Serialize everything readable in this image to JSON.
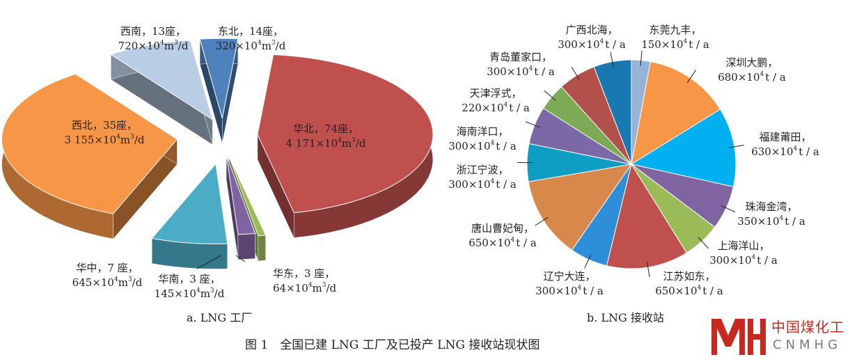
{
  "figure_title": "图 1　全国已建 LNG 工厂及已投产 LNG 接收站现状图",
  "logo": {
    "cn": "中国煤化工",
    "en": "CNMHG",
    "color": "#c8291f"
  },
  "chart_data": [
    {
      "type": "pie",
      "subtitle": "a. LNG 工厂",
      "style": "3d-exploded",
      "series": [
        {
          "region": "华北",
          "count": 74,
          "capacity": 4171,
          "line1": "华北，74座，",
          "line2a": "4 171×10",
          "line2b": "m",
          "line2c": "/d",
          "color": "#c0504d"
        },
        {
          "region": "华东",
          "count": 3,
          "capacity": 64,
          "line1": "华东，3 座，",
          "line2a": "64×10",
          "line2b": "m",
          "line2c": "/d",
          "color": "#9bbb59"
        },
        {
          "region": "华南",
          "count": 3,
          "capacity": 145,
          "line1": "华南，3 座，",
          "line2a": "145×10",
          "line2b": "m",
          "line2c": "/d",
          "color": "#8064a2"
        },
        {
          "region": "华中",
          "count": 7,
          "capacity": 645,
          "line1": "华中，7 座，",
          "line2a": "645×10",
          "line2b": "m",
          "line2c": "/d",
          "color": "#4bacc6"
        },
        {
          "region": "西北",
          "count": 35,
          "capacity": 3155,
          "line1": "西北，35座，",
          "line2a": "3 155×10",
          "line2b": "m",
          "line2c": "/d",
          "color": "#f79646"
        },
        {
          "region": "西南",
          "count": 13,
          "capacity": 720,
          "line1": "西南，13座，",
          "line2a": "720×10",
          "line2b": "m",
          "line2c": "/d",
          "color": "#b9cde5"
        },
        {
          "region": "东北",
          "count": 14,
          "capacity": 320,
          "line1": "东北，14座，",
          "line2a": "320×10",
          "line2b": "m",
          "line2c": "/d",
          "color": "#4f81bd"
        }
      ],
      "units": "10^4 m^3/d",
      "sup": "4",
      "sup3": "3"
    },
    {
      "type": "pie",
      "subtitle": "b. LNG 接收站",
      "series": [
        {
          "name": "东莞九丰",
          "value": 150,
          "line2a": "150×10",
          "line2b": "t / a",
          "color": "#95b3d7"
        },
        {
          "name": "深圳大鹏",
          "value": 680,
          "line2a": "680×10",
          "line2b": "t / a",
          "color": "#f79646"
        },
        {
          "name": "福建莆田",
          "value": 630,
          "line2a": "630×10",
          "line2b": "t / a",
          "color": "#00b0f0"
        },
        {
          "name": "珠海金湾",
          "value": 350,
          "line2a": "350×10",
          "line2b": "t / a",
          "color": "#8064a2"
        },
        {
          "name": "上海洋山",
          "value": 300,
          "line2a": "300×10",
          "line2b": "t / a",
          "color": "#9bbb59"
        },
        {
          "name": "江苏如东",
          "value": 650,
          "line2a": "650×10",
          "line2b": "t / a",
          "color": "#c0504d"
        },
        {
          "name": "辽宁大连",
          "value": 300,
          "line2a": "300×10",
          "line2b": "t / a",
          "color": "#2e8fd8"
        },
        {
          "name": "唐山曹妃甸",
          "value": 650,
          "line2a": "650×10",
          "line2b": "t / a",
          "color": "#d8884a"
        },
        {
          "name": "浙江宁波",
          "value": 300,
          "line2a": "300×10",
          "line2b": "t / a",
          "color": "#0e9ec4"
        },
        {
          "name": "海南洋口",
          "value": 300,
          "line2a": "300×10",
          "line2b": "t / a",
          "color": "#7b68a6"
        },
        {
          "name": "天津浮式",
          "value": 220,
          "line2a": "220×10",
          "line2b": "t / a",
          "color": "#7dab55"
        },
        {
          "name": "青岛董家口",
          "value": 300,
          "line2a": "300×10",
          "line2b": "t / a",
          "color": "#b2504b"
        },
        {
          "name": "广西北海",
          "value": 300,
          "line2a": "300×10",
          "line2b": "t / a",
          "color": "#1a78b0"
        }
      ],
      "units": "10^4 t / a",
      "sup": "4"
    }
  ]
}
